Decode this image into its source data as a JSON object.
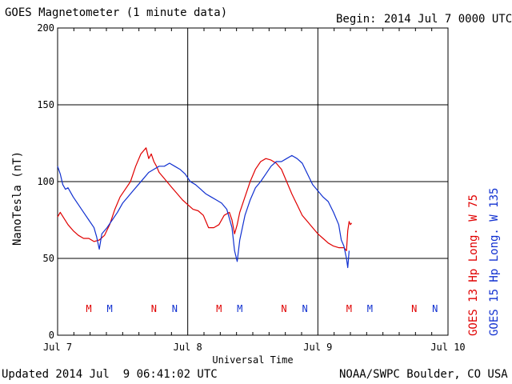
{
  "header": {
    "title": "GOES Magnetometer (1 minute data)",
    "begin_label": "Begin:",
    "begin_value": "2014 Jul 7 0000 UTC"
  },
  "footer": {
    "updated": "Updated 2014 Jul  9 06:41:02 UTC",
    "source": "NOAA/SWPC Boulder, CO USA"
  },
  "colors": {
    "goes13": "#e00000",
    "goes15": "#1030d0",
    "grid": "#000000",
    "background": "#ffffff"
  },
  "chart_data": {
    "type": "line",
    "title": "GOES Magnetometer (1 minute data)",
    "xlabel": "Universal Time",
    "ylabel": "NanoTesla (nT)",
    "ylim": [
      0,
      200
    ],
    "xlim": [
      0,
      3
    ],
    "grid": true,
    "y_ticks": [
      "0",
      "50",
      "100",
      "150",
      "200"
    ],
    "x_ticks": [
      "Jul 7",
      "Jul 8",
      "Jul 9",
      "Jul 10"
    ],
    "legend_position": "right",
    "series": [
      {
        "name": "GOES 13 Hp  Long. W 75",
        "color": "#e00000",
        "x": [
          0.0,
          0.02,
          0.05,
          0.08,
          0.12,
          0.16,
          0.2,
          0.24,
          0.28,
          0.32,
          0.36,
          0.4,
          0.44,
          0.48,
          0.52,
          0.56,
          0.6,
          0.64,
          0.68,
          0.7,
          0.72,
          0.74,
          0.76,
          0.78,
          0.8,
          0.84,
          0.88,
          0.92,
          0.96,
          1.0,
          1.04,
          1.08,
          1.12,
          1.16,
          1.2,
          1.24,
          1.28,
          1.32,
          1.34,
          1.36,
          1.38,
          1.4,
          1.44,
          1.48,
          1.52,
          1.56,
          1.6,
          1.64,
          1.68,
          1.72,
          1.76,
          1.8,
          1.84,
          1.88,
          1.92,
          1.96,
          2.0,
          2.04,
          2.08,
          2.12,
          2.16,
          2.2,
          2.22,
          2.23,
          2.24,
          2.25,
          2.26
        ],
        "values": [
          77,
          80,
          76,
          72,
          68,
          65,
          63,
          63,
          61,
          62,
          65,
          72,
          82,
          90,
          95,
          100,
          110,
          118,
          122,
          115,
          118,
          113,
          110,
          106,
          104,
          100,
          96,
          92,
          88,
          85,
          82,
          81,
          78,
          70,
          70,
          72,
          78,
          80,
          75,
          66,
          72,
          80,
          90,
          100,
          108,
          113,
          115,
          114,
          112,
          108,
          100,
          92,
          85,
          78,
          74,
          70,
          66,
          63,
          60,
          58,
          57,
          57,
          55,
          68,
          74,
          72,
          73
        ]
      },
      {
        "name": "GOES 15 Hp  Long. W 135",
        "color": "#1030d0",
        "x": [
          0.0,
          0.02,
          0.04,
          0.06,
          0.08,
          0.12,
          0.16,
          0.2,
          0.24,
          0.28,
          0.3,
          0.32,
          0.34,
          0.38,
          0.42,
          0.46,
          0.5,
          0.54,
          0.58,
          0.62,
          0.66,
          0.7,
          0.74,
          0.78,
          0.82,
          0.86,
          0.9,
          0.94,
          0.98,
          1.02,
          1.06,
          1.1,
          1.14,
          1.18,
          1.22,
          1.26,
          1.3,
          1.34,
          1.36,
          1.38,
          1.4,
          1.44,
          1.48,
          1.52,
          1.56,
          1.6,
          1.64,
          1.68,
          1.72,
          1.76,
          1.8,
          1.84,
          1.88,
          1.92,
          1.96,
          2.0,
          2.04,
          2.08,
          2.12,
          2.16,
          2.18,
          2.2,
          2.22,
          2.23,
          2.24
        ],
        "values": [
          110,
          105,
          98,
          95,
          96,
          90,
          85,
          80,
          75,
          70,
          64,
          56,
          66,
          70,
          75,
          80,
          86,
          90,
          94,
          98,
          102,
          106,
          108,
          110,
          110,
          112,
          110,
          108,
          105,
          100,
          98,
          95,
          92,
          90,
          88,
          86,
          82,
          70,
          55,
          48,
          62,
          78,
          88,
          96,
          100,
          105,
          110,
          113,
          113,
          115,
          117,
          115,
          112,
          105,
          98,
          94,
          90,
          87,
          80,
          72,
          62,
          58,
          50,
          44,
          55
        ]
      }
    ],
    "event_markers": [
      {
        "label": "M",
        "x": 0.24,
        "series": "GOES 13 Hp  Long. W 75"
      },
      {
        "label": "M",
        "x": 0.4,
        "series": "GOES 15 Hp  Long. W 135"
      },
      {
        "label": "N",
        "x": 0.74,
        "series": "GOES 13 Hp  Long. W 75"
      },
      {
        "label": "N",
        "x": 0.9,
        "series": "GOES 15 Hp  Long. W 135"
      },
      {
        "label": "M",
        "x": 1.24,
        "series": "GOES 13 Hp  Long. W 75"
      },
      {
        "label": "M",
        "x": 1.4,
        "series": "GOES 15 Hp  Long. W 135"
      },
      {
        "label": "N",
        "x": 1.74,
        "series": "GOES 13 Hp  Long. W 75"
      },
      {
        "label": "N",
        "x": 1.9,
        "series": "GOES 15 Hp  Long. W 135"
      },
      {
        "label": "M",
        "x": 2.24,
        "series": "GOES 13 Hp  Long. W 75"
      },
      {
        "label": "M",
        "x": 2.4,
        "series": "GOES 15 Hp  Long. W 135"
      },
      {
        "label": "N",
        "x": 2.74,
        "series": "GOES 13 Hp  Long. W 75"
      },
      {
        "label": "N",
        "x": 2.9,
        "series": "GOES 15 Hp  Long. W 135"
      }
    ]
  }
}
